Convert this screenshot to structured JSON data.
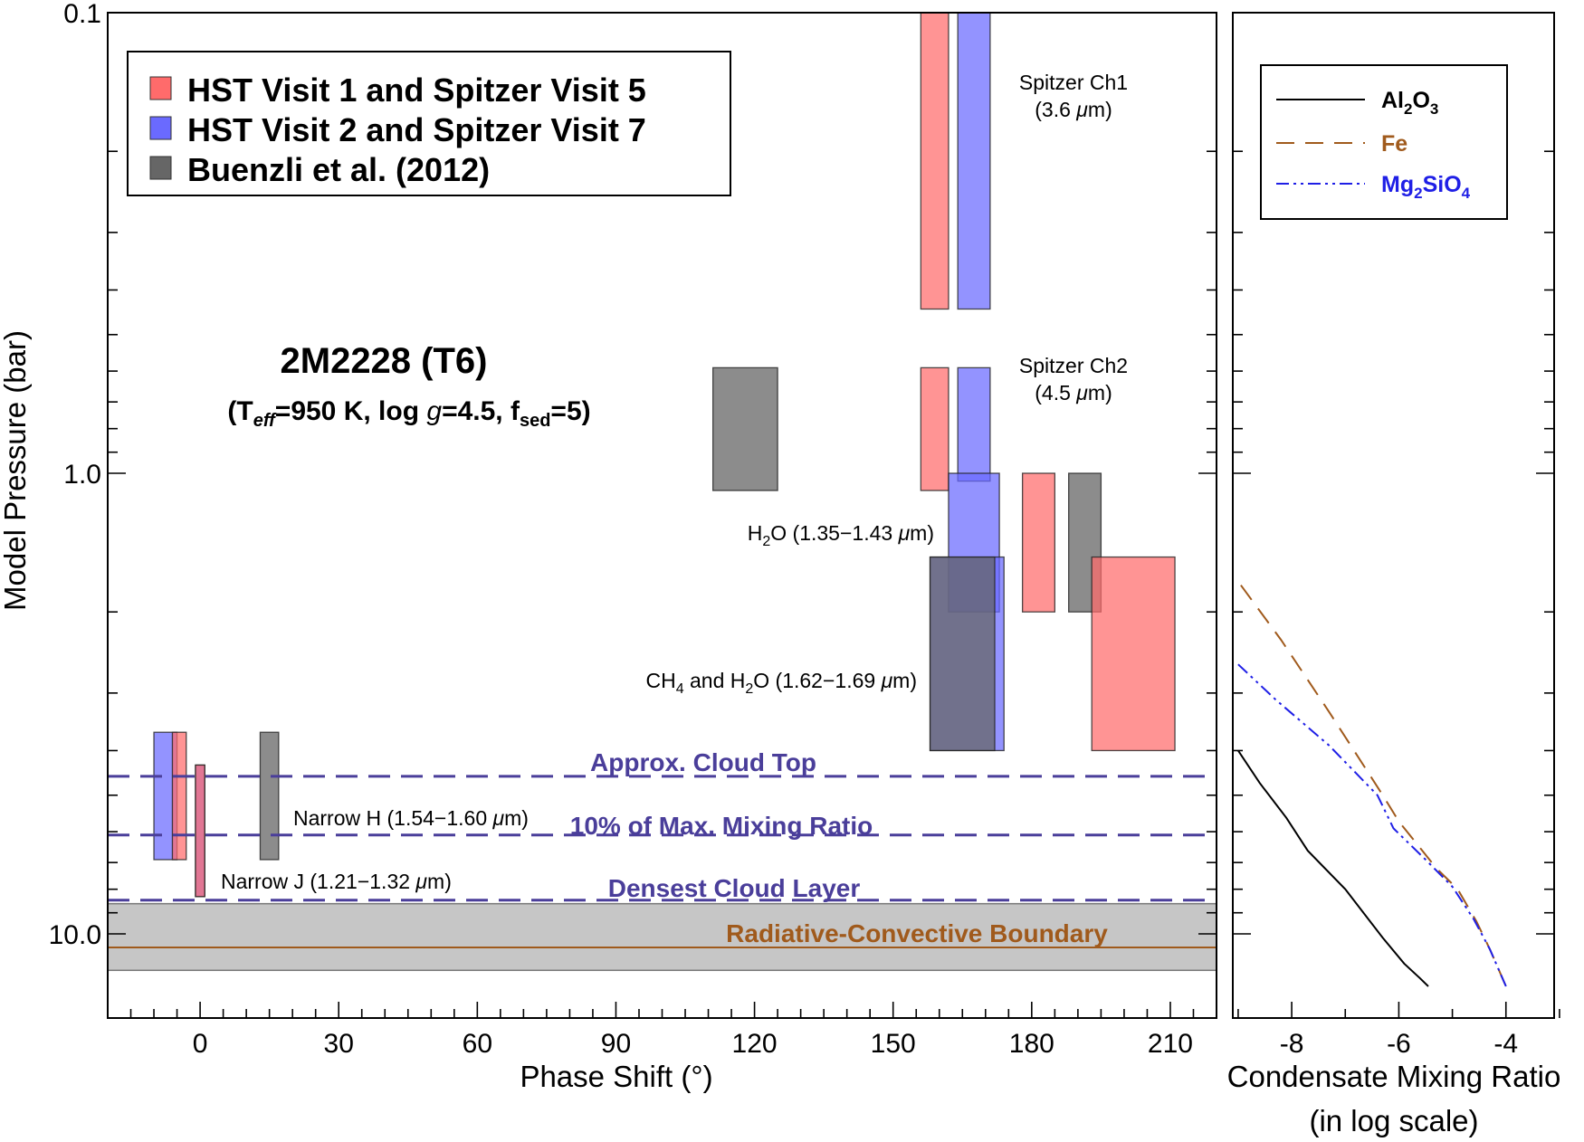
{
  "colors": {
    "visit1": "#ff6b6b",
    "visit2": "#6a6aff",
    "buenzli": "#666666",
    "cloud_lines": "#4a3e9a",
    "rcb": "#a05a1c",
    "rcb_band": "#c6c6c6",
    "al2o3": "#000000",
    "fe": "#a05a1c",
    "mg2sio4": "#1f1fe6"
  },
  "chart_data": [
    {
      "type": "bar",
      "subtype": "range-boxes",
      "title": "2M2228 (T6)",
      "subtitle_parts": {
        "open": "(T",
        "teff_sub": "eff",
        "eq_temp": "=950 K, log ",
        "g": "g",
        "eq_g": "=4.5, f",
        "fsed_sub": "sed",
        "eq_fsed": "=5)"
      },
      "xlabel": "Phase Shift (°)",
      "ylabel": "Model Pressure (bar)",
      "xlim": [
        -20,
        220
      ],
      "ylim": [
        0.1,
        12.5
      ],
      "yscale": "log",
      "y_inverted": true,
      "xticks": [
        0,
        30,
        60,
        90,
        120,
        150,
        180,
        210
      ],
      "xtick_labels": [
        "0",
        "30",
        "60",
        "90",
        "120",
        "150",
        "180",
        "210"
      ],
      "ytick_labels": [
        "0.1",
        "1.0",
        "10.0"
      ],
      "legend": [
        {
          "key": "visit1",
          "label": "HST Visit 1 and Spitzer Visit 5"
        },
        {
          "key": "visit2",
          "label": "HST Visit 2 and Spitzer Visit 7"
        },
        {
          "key": "buenzli",
          "label": "Buenzli et al. (2012)"
        }
      ],
      "boxes": [
        {
          "series": "visit1",
          "group": "Spitzer Ch1",
          "x": [
            156,
            162
          ],
          "p": [
            0.1,
            0.44
          ]
        },
        {
          "series": "visit2",
          "group": "Spitzer Ch1",
          "x": [
            164,
            171
          ],
          "p": [
            0.1,
            0.44
          ]
        },
        {
          "series": "visit1",
          "group": "Spitzer Ch2",
          "x": [
            156,
            162
          ],
          "p": [
            0.59,
            1.09
          ]
        },
        {
          "series": "visit2",
          "group": "Spitzer Ch2",
          "x": [
            164,
            171
          ],
          "p": [
            0.59,
            1.04
          ]
        },
        {
          "series": "buenzli",
          "group": "H2O",
          "x": [
            111,
            125
          ],
          "p": [
            0.59,
            1.09
          ]
        },
        {
          "series": "visit2",
          "group": "H2O",
          "x": [
            162,
            173
          ],
          "p": [
            1.0,
            2.0
          ]
        },
        {
          "series": "visit1",
          "group": "H2O",
          "x": [
            178,
            185
          ],
          "p": [
            1.0,
            2.0
          ]
        },
        {
          "series": "buenzli",
          "group": "H2O",
          "x": [
            188,
            195
          ],
          "p": [
            1.0,
            2.0
          ]
        },
        {
          "series": "visit1",
          "group": "CH4 and H2O",
          "x": [
            193,
            211
          ],
          "p": [
            1.52,
            4.0
          ]
        },
        {
          "series": "visit2",
          "group": "CH4 and H2O",
          "x": [
            158,
            174
          ],
          "p": [
            1.52,
            4.0
          ]
        },
        {
          "series": "buenzli",
          "group": "CH4 and H2O",
          "x": [
            158,
            172
          ],
          "p": [
            1.52,
            4.0
          ]
        },
        {
          "series": "visit2",
          "group": "Narrow H",
          "x": [
            -10,
            -5
          ],
          "p": [
            3.65,
            6.9
          ]
        },
        {
          "series": "visit1",
          "group": "Narrow H",
          "x": [
            -6,
            -3
          ],
          "p": [
            3.65,
            6.9
          ]
        },
        {
          "series": "buenzli",
          "group": "Narrow H",
          "x": [
            13,
            17
          ],
          "p": [
            3.65,
            6.9
          ]
        },
        {
          "series": "visit2",
          "group": "Narrow J",
          "x": [
            -1,
            1
          ],
          "p": [
            4.3,
            8.3
          ]
        },
        {
          "series": "visit1",
          "group": "Narrow J",
          "x": [
            -1,
            1
          ],
          "p": [
            4.3,
            8.3
          ]
        }
      ],
      "band_annotations": [
        {
          "line1": "Spitzer Ch1",
          "line2_prefix": "(3.6 ",
          "line2_mu": "μ",
          "line2_suffix": "m)"
        },
        {
          "line1": "Spitzer Ch2",
          "line2_prefix": "(4.5 ",
          "line2_mu": "μ",
          "line2_suffix": "m)"
        },
        {
          "pre": "H",
          "sub1": "2",
          "post": "O (1.35−1.43 ",
          "mu": "μ",
          "end": "m)"
        },
        {
          "pre": "CH",
          "sub1": "4",
          "mid": " and H",
          "sub2": "2",
          "post": "O (1.62−1.69 ",
          "mu": "μ",
          "end": "m)"
        },
        {
          "pre": "Narrow H (1.54−1.60 ",
          "mu": "μ",
          "end": "m)"
        },
        {
          "pre": "Narrow J (1.21−1.32 ",
          "mu": "μ",
          "end": "m)"
        }
      ],
      "reference_lines": [
        {
          "label": "Approx. Cloud Top",
          "pressure": 4.55,
          "style": "dashed"
        },
        {
          "label": "10% of Max. Mixing Ratio",
          "pressure": 6.1,
          "style": "dashed"
        },
        {
          "label": "Densest Cloud Layer",
          "pressure": 8.45,
          "style": "dashed"
        },
        {
          "label": "Radiative-Convective Boundary",
          "pressure": 10.7,
          "style": "solid",
          "band": [
            8.6,
            12.0
          ]
        }
      ]
    },
    {
      "type": "line",
      "xlabel_line1": "Condensate Mixing Ratio",
      "xlabel_line2": "(in log scale)",
      "xlim": [
        -9.1,
        -3.1
      ],
      "xticks": [
        -8,
        -6,
        -4
      ],
      "xtick_labels": [
        "-8",
        "-6",
        "-4"
      ],
      "yscale": "log",
      "y_shared": true,
      "legend": [
        {
          "key": "al2o3",
          "pre": "Al",
          "sub1": "2",
          "mid": "O",
          "sub2": "3",
          "post": ""
        },
        {
          "key": "fe",
          "pre": "Fe",
          "sub1": "",
          "mid": "",
          "sub2": "",
          "post": ""
        },
        {
          "key": "mg2sio4",
          "pre": "Mg",
          "sub1": "2",
          "mid": "SiO",
          "sub2": "4",
          "post": ""
        }
      ],
      "series": [
        {
          "name": "Al2O3",
          "key": "al2o3",
          "dash": "solid",
          "x": [
            -9.0,
            -8.6,
            -8.1,
            -7.7,
            -7.0,
            -6.3,
            -5.9,
            -5.6,
            -5.45
          ],
          "p": [
            4.0,
            4.7,
            5.6,
            6.6,
            8.0,
            10.2,
            11.6,
            12.5,
            13.0
          ]
        },
        {
          "name": "Fe",
          "key": "fe",
          "dash": "dashed",
          "x": [
            -8.95,
            -8.2,
            -7.3,
            -6.3,
            -6.0,
            -5.3,
            -4.9,
            -4.55,
            -4.3,
            -4.0
          ],
          "p": [
            1.75,
            2.3,
            3.3,
            5.0,
            5.7,
            7.2,
            8.0,
            9.4,
            10.8,
            13.0
          ]
        },
        {
          "name": "Mg2SiO4",
          "key": "mg2sio4",
          "dash": "dashdotdot",
          "x": [
            -9.0,
            -8.3,
            -7.3,
            -6.4,
            -6.1,
            -5.5,
            -5.0,
            -4.6,
            -4.3,
            -4.0
          ],
          "p": [
            2.6,
            3.1,
            3.9,
            5.0,
            5.9,
            6.9,
            7.9,
            9.3,
            10.8,
            13.0
          ]
        }
      ]
    }
  ]
}
